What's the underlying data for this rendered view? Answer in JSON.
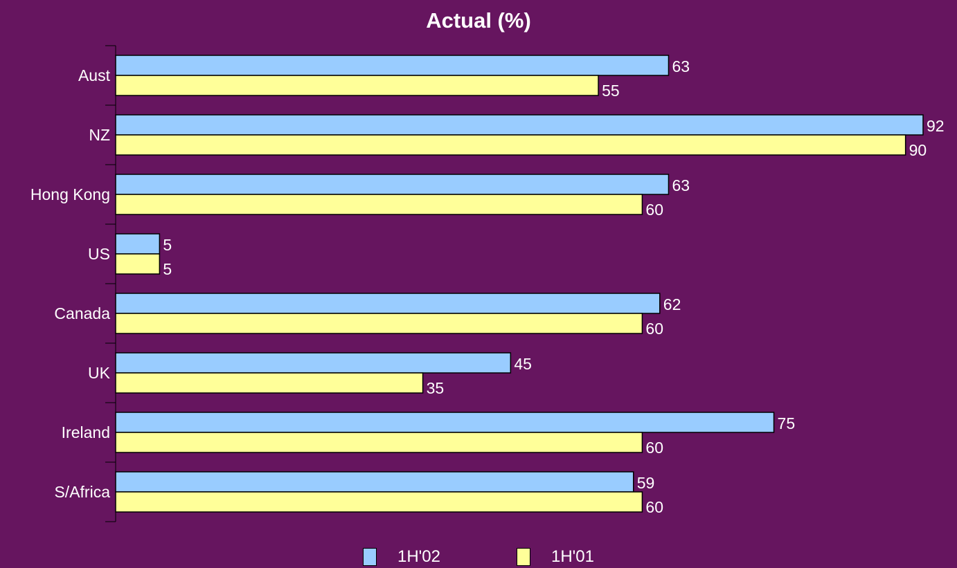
{
  "chart_data": {
    "type": "bar",
    "orientation": "horizontal",
    "title": "Actual (%)",
    "xlabel": "",
    "ylabel": "",
    "xlim": [
      0,
      92
    ],
    "grid": false,
    "legend_position": "bottom",
    "categories": [
      "Aust",
      "NZ",
      "Hong Kong",
      "US",
      "Canada",
      "UK",
      "Ireland",
      "S/Africa"
    ],
    "series": [
      {
        "name": "1H'02",
        "color": "#99ccff",
        "values": [
          63,
          92,
          63,
          5,
          62,
          45,
          75,
          59
        ]
      },
      {
        "name": "1H'01",
        "color": "#ffff99",
        "values": [
          55,
          90,
          60,
          5,
          60,
          35,
          60,
          60
        ]
      }
    ]
  },
  "colors": {
    "background": "#66155f",
    "text": "#ffffff",
    "bar_outline": "#000000"
  }
}
